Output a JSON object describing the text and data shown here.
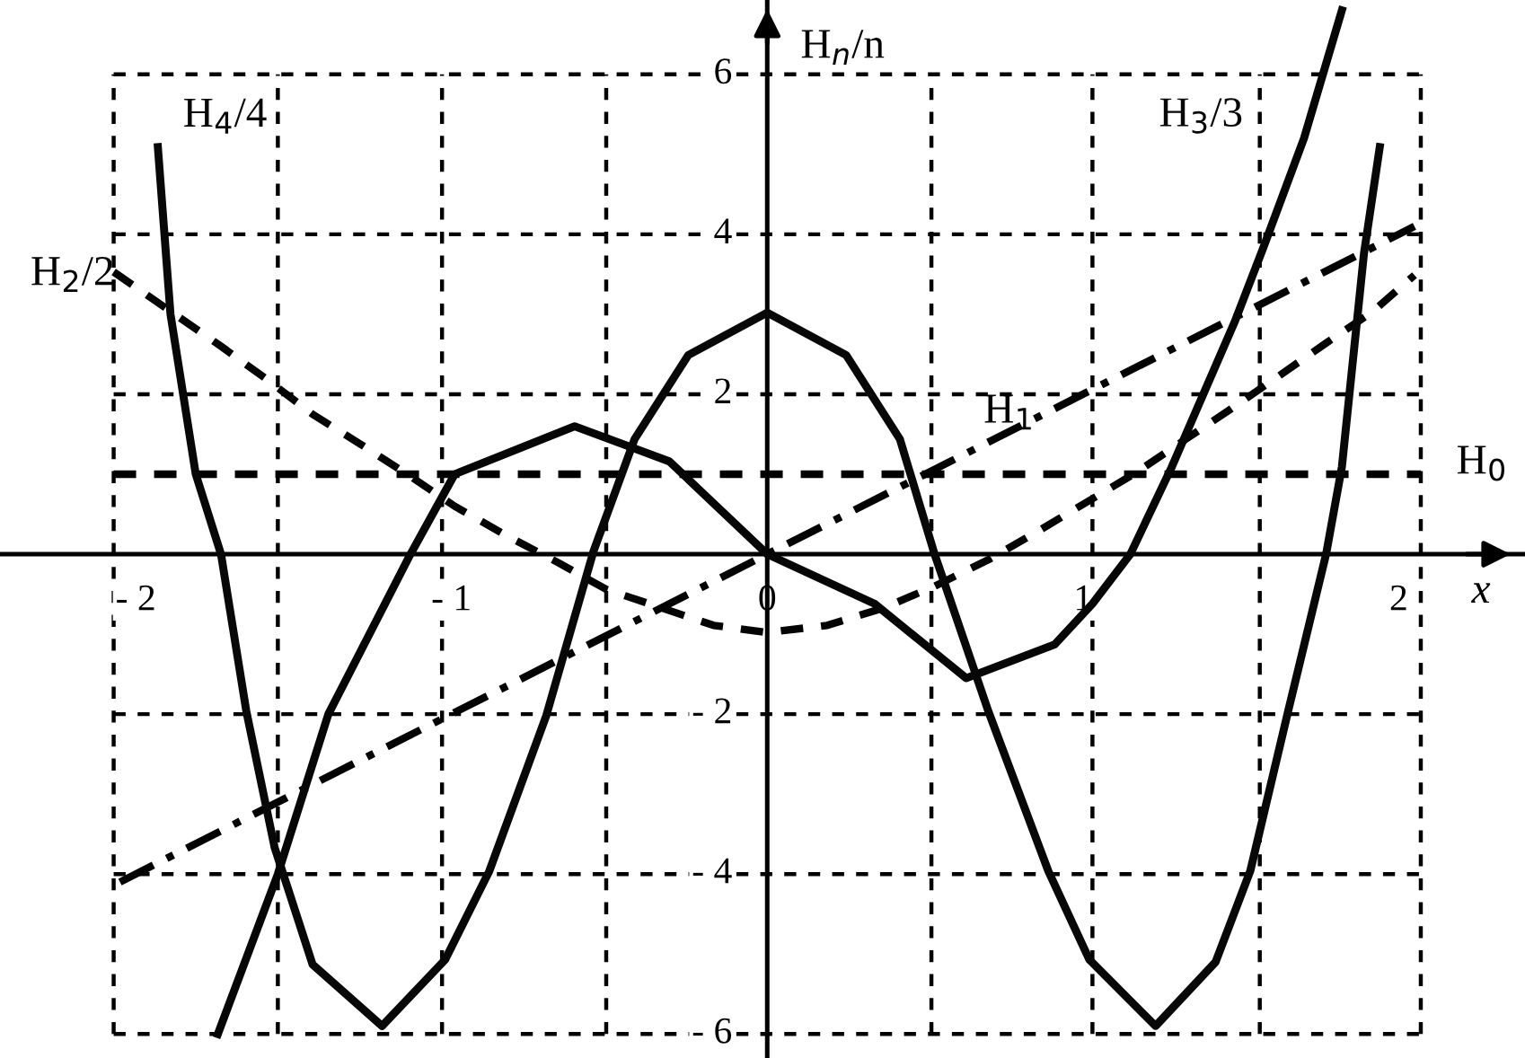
{
  "chart_data": {
    "type": "line",
    "xlabel": "x",
    "ylabel": "H$_{n}$/n",
    "xlim": [
      -2.43,
      2.4
    ],
    "ylim": [
      -6.3,
      6.93
    ],
    "xticks": [
      {
        "value": -2.07,
        "label": null
      },
      {
        "value": -2,
        "label": "- 2"
      },
      {
        "value": -1.55,
        "label": null
      },
      {
        "value": -1.03,
        "label": null
      },
      {
        "value": -1,
        "label": "- 1"
      },
      {
        "value": -0.51,
        "label": null
      },
      {
        "value": 0,
        "label": "0"
      },
      {
        "value": 0.52,
        "label": null
      },
      {
        "value": 1,
        "label": "1"
      },
      {
        "value": 1.03,
        "label": null
      },
      {
        "value": 1.56,
        "label": null
      },
      {
        "value": 2,
        "label": "2"
      },
      {
        "value": 2.07,
        "label": null
      }
    ],
    "yticks": [
      {
        "value": -6,
        "label": "- 6"
      },
      {
        "value": -4,
        "label": "- 4"
      },
      {
        "value": -2,
        "label": "- 2"
      },
      2,
      4,
      6
    ],
    "grid": true,
    "legend": false,
    "marker": "none",
    "series": [
      {
        "name": "H$_{0}$",
        "color": "#000000",
        "line_style": "dashed",
        "x": [
          -2.07,
          2.07
        ],
        "values": [
          1,
          1
        ]
      },
      {
        "name": "H$_{1}$",
        "color": "#020202",
        "line_style": "dashdot",
        "x": [
          -2.05,
          2.05
        ],
        "values": [
          -4.1,
          4.1
        ]
      },
      {
        "name": "H$_{2}$/2",
        "color": "#040404",
        "line_style": "dashed",
        "x": [
          -2.07,
          -1.73,
          -1.59,
          -1.44,
          -1.29,
          -1.14,
          -0.99,
          -0.82,
          -0.66,
          -0.51,
          -0.17,
          0,
          0.19,
          0.37,
          0.53,
          0.7,
          0.85,
          1.16,
          1.47,
          1.61,
          1.77,
          1.92,
          2.05
        ],
        "values": [
          3.53,
          2.6,
          2.2,
          1.75,
          1.38,
          1.0,
          0.6,
          0.22,
          -0.11,
          -0.44,
          -0.89,
          -0.98,
          -0.89,
          -0.67,
          -0.4,
          -0.07,
          0.27,
          1.0,
          1.82,
          2.2,
          2.64,
          3.04,
          3.49
        ]
      },
      {
        "name": "H$_{3}$/3",
        "color": "#060606",
        "line_style": "solid",
        "x": [
          -1.74,
          -1.55,
          -1.39,
          -1.13,
          -0.99,
          -0.61,
          -0.31,
          0,
          0.34,
          0.63,
          0.91,
          1.03,
          1.15,
          1.28,
          1.48,
          1.57,
          1.7,
          1.82
        ],
        "values": [
          -6.0,
          -4.0,
          -2.0,
          0,
          1.0,
          1.6,
          1.16,
          0,
          -0.62,
          -1.55,
          -1.13,
          -0.62,
          0,
          1.08,
          2.9,
          3.82,
          5.2,
          6.8
        ]
      },
      {
        "name": "H$_{4}$/4",
        "color": "#080808",
        "line_style": "solid",
        "x": [
          -1.93,
          -1.89,
          -1.81,
          -1.73,
          -1.65,
          -1.56,
          -1.44,
          -1.22,
          -1.02,
          -0.88,
          -0.7,
          -0.55,
          -0.42,
          -0.25,
          0,
          0.25,
          0.42,
          0.53,
          0.7,
          0.89,
          1.02,
          1.23,
          1.42,
          1.53,
          1.65,
          1.77,
          1.82,
          1.89,
          1.94
        ],
        "values": [
          5.09,
          3.0,
          1.0,
          0,
          -1.96,
          -3.67,
          -5.13,
          -5.9,
          -5.07,
          -3.96,
          -2.02,
          0.04,
          1.44,
          2.49,
          3.02,
          2.49,
          1.44,
          0,
          -1.96,
          -3.96,
          -5.07,
          -5.9,
          -5.1,
          -3.96,
          -1.96,
          0,
          1.09,
          3.76,
          5.09
        ]
      }
    ]
  }
}
